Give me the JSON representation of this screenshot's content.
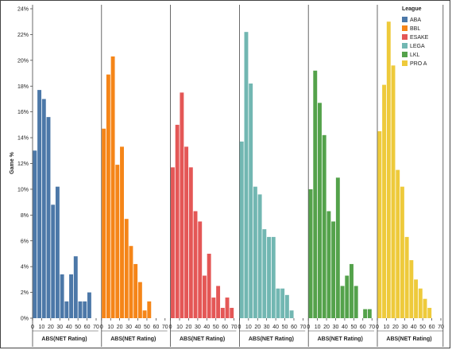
{
  "chart_data": {
    "type": "bar",
    "facet": "column",
    "ylabel": "Game %",
    "xlabel": "ABS(NET Rating)",
    "ylim": [
      0,
      24
    ],
    "yticks": [
      0,
      2,
      4,
      6,
      8,
      10,
      12,
      14,
      16,
      18,
      20,
      22,
      24
    ],
    "ytick_format": "%",
    "xticks": [
      0,
      10,
      20,
      30,
      40,
      50,
      60,
      70
    ],
    "bin_width": 5,
    "legend": {
      "title": "League",
      "position": "top-right"
    },
    "series": [
      {
        "name": "ABA",
        "color": "#4c78a8",
        "x": [
          0,
          5,
          10,
          15,
          20,
          25,
          30,
          35,
          40,
          45,
          50,
          55,
          60
        ],
        "values": [
          13.0,
          17.7,
          17.0,
          15.6,
          8.8,
          10.2,
          3.4,
          1.3,
          3.4,
          4.8,
          1.3,
          1.3,
          2.0
        ]
      },
      {
        "name": "BBL",
        "color": "#f58518",
        "x": [
          0,
          5,
          10,
          15,
          20,
          25,
          30,
          35,
          40,
          45,
          50
        ],
        "values": [
          14.7,
          18.9,
          20.3,
          11.9,
          13.3,
          7.7,
          5.6,
          4.2,
          2.8,
          0.6,
          1.3
        ]
      },
      {
        "name": "ESAKE",
        "color": "#e45756",
        "x": [
          0,
          5,
          10,
          15,
          20,
          25,
          30,
          35,
          40,
          45,
          50,
          55,
          60,
          65
        ],
        "values": [
          11.7,
          15.0,
          17.5,
          13.3,
          11.7,
          8.3,
          7.5,
          3.3,
          5.0,
          1.6,
          2.5,
          0.8,
          1.6,
          0.8
        ]
      },
      {
        "name": "LEGA",
        "color": "#72b7b2",
        "x": [
          0,
          5,
          10,
          15,
          20,
          25,
          30,
          35,
          40,
          45,
          50,
          55
        ],
        "values": [
          13.7,
          22.2,
          18.2,
          10.2,
          9.6,
          6.9,
          6.3,
          6.3,
          2.3,
          2.3,
          1.8,
          0.6
        ]
      },
      {
        "name": "LKL",
        "color": "#54a24b",
        "x": [
          0,
          5,
          10,
          15,
          20,
          25,
          30,
          35,
          40,
          45,
          50,
          55,
          60,
          65
        ],
        "values": [
          10.0,
          19.2,
          16.7,
          14.2,
          8.3,
          7.5,
          10.9,
          2.5,
          3.3,
          4.2,
          2.5,
          0,
          0.7,
          0.7
        ]
      },
      {
        "name": "PRO A",
        "color": "#eeca3b",
        "x": [
          0,
          5,
          10,
          15,
          20,
          25,
          30,
          35,
          40,
          45,
          50,
          55
        ],
        "values": [
          14.5,
          18.1,
          23.0,
          19.6,
          11.5,
          10.2,
          6.3,
          4.5,
          3.0,
          2.3,
          1.5,
          0.8
        ]
      }
    ]
  }
}
